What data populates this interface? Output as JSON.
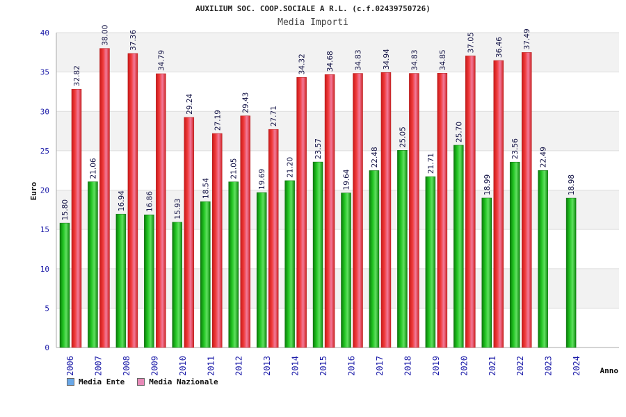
{
  "chart_data": {
    "type": "bar",
    "title": "AUXILIUM SOC. COOP.SOCIALE A R.L. (c.f.02439750726)",
    "subtitle": "Media Importi",
    "xlabel": "Anno",
    "ylabel": "Euro",
    "ylim": [
      0,
      40
    ],
    "yticks": [
      "0",
      "5",
      "10",
      "15",
      "20",
      "25",
      "30",
      "35",
      "40"
    ],
    "categories": [
      "2006",
      "2007",
      "2008",
      "2009",
      "2010",
      "2011",
      "2012",
      "2013",
      "2014",
      "2015",
      "2016",
      "2017",
      "2018",
      "2019",
      "2020",
      "2021",
      "2022",
      "2023",
      "2024"
    ],
    "series": [
      {
        "name": "Media Ente",
        "color": "#22aa22",
        "values": [
          15.8,
          21.06,
          16.94,
          16.86,
          15.93,
          18.54,
          21.05,
          19.69,
          21.2,
          23.57,
          19.64,
          22.48,
          25.05,
          21.71,
          25.7,
          18.99,
          23.56,
          22.49,
          18.98
        ],
        "labels": [
          "15.80",
          "21.06",
          "16.94",
          "16.86",
          "15.93",
          "18.54",
          "21.05",
          "19.69",
          "21.20",
          "23.57",
          "19.64",
          "22.48",
          "25.05",
          "21.71",
          "25.70",
          "18.99",
          "23.56",
          "22.49",
          "18.98"
        ]
      },
      {
        "name": "Media Nazionale",
        "color": "#e83030",
        "values": [
          32.82,
          38.0,
          37.36,
          34.79,
          29.24,
          27.19,
          29.43,
          27.71,
          34.32,
          34.68,
          34.83,
          34.94,
          34.83,
          34.85,
          37.05,
          36.46,
          37.49,
          null,
          null
        ],
        "labels": [
          "32.82",
          "38.00",
          "37.36",
          "34.79",
          "29.24",
          "27.19",
          "29.43",
          "27.71",
          "34.32",
          "34.68",
          "34.83",
          "34.94",
          "34.83",
          "34.85",
          "37.05",
          "36.46",
          "37.49",
          null,
          null
        ]
      }
    ],
    "legend": [
      {
        "label": "Media Ente",
        "color": "#6aa8e8"
      },
      {
        "label": "Media Nazionale",
        "color": "#e88ab8"
      }
    ],
    "grid": true,
    "legend_position": "bottom-left"
  }
}
